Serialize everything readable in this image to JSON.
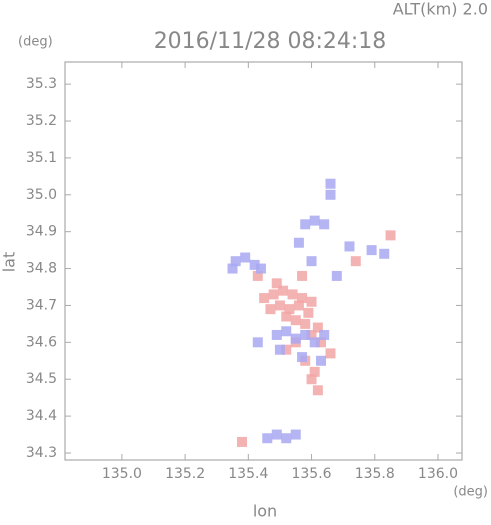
{
  "chart_data": {
    "type": "scatter",
    "title": "2016/11/28 08:24:18",
    "subtitle": "ALT(km) 2.0",
    "y_unit": "(deg)",
    "x_unit": "(deg)",
    "x_label": "lon",
    "y_label": "lat",
    "xlim": [
      134.82,
      136.076
    ],
    "ylim": [
      34.281,
      35.36
    ],
    "xticks": [
      {
        "value": 135,
        "label": "135.0"
      },
      135.2,
      135.4,
      135.6,
      135.8,
      {
        "value": 136,
        "label": "136.0"
      }
    ],
    "yticks": [
      34.3,
      34.4,
      34.5,
      34.6,
      34.7,
      34.8,
      34.9,
      {
        "value": 35,
        "label": "35.0"
      },
      35.1,
      35.2,
      35.3
    ],
    "series": [
      {
        "color": "#f2a6a6",
        "x": [
          135.45,
          135.48,
          135.51,
          135.54,
          135.57,
          135.6,
          135.47,
          135.5,
          135.53,
          135.56,
          135.59,
          135.52,
          135.55,
          135.58,
          135.62,
          135.49,
          135.6,
          135.63,
          135.58,
          135.61,
          135.6,
          135.62,
          135.52,
          135.55,
          135.85,
          135.74,
          135.38,
          135.43,
          135.66,
          135.57
        ],
        "values": [
          34.72,
          34.73,
          34.74,
          34.73,
          34.72,
          34.71,
          34.69,
          34.7,
          34.69,
          34.7,
          34.68,
          34.67,
          34.66,
          34.65,
          34.64,
          34.76,
          34.62,
          34.6,
          34.55,
          34.52,
          34.5,
          34.47,
          34.58,
          34.6,
          34.89,
          34.82,
          34.33,
          34.78,
          34.57,
          34.78
        ]
      },
      {
        "color": "#a8a8f2",
        "x": [
          135.36,
          135.39,
          135.42,
          135.44,
          135.58,
          135.61,
          135.64,
          135.66,
          135.66,
          135.49,
          135.52,
          135.55,
          135.58,
          135.61,
          135.64,
          135.5,
          135.57,
          135.63,
          135.46,
          135.49,
          135.52,
          135.55,
          135.35,
          135.43,
          135.68,
          135.72,
          135.79,
          135.83,
          135.56,
          135.6
        ],
        "values": [
          34.82,
          34.83,
          34.81,
          34.8,
          34.92,
          34.93,
          34.92,
          35.0,
          35.03,
          34.62,
          34.63,
          34.61,
          34.62,
          34.6,
          34.62,
          34.58,
          34.56,
          34.55,
          34.34,
          34.35,
          34.34,
          34.35,
          34.8,
          34.6,
          34.78,
          34.86,
          34.85,
          34.84,
          34.87,
          34.82
        ]
      }
    ]
  }
}
